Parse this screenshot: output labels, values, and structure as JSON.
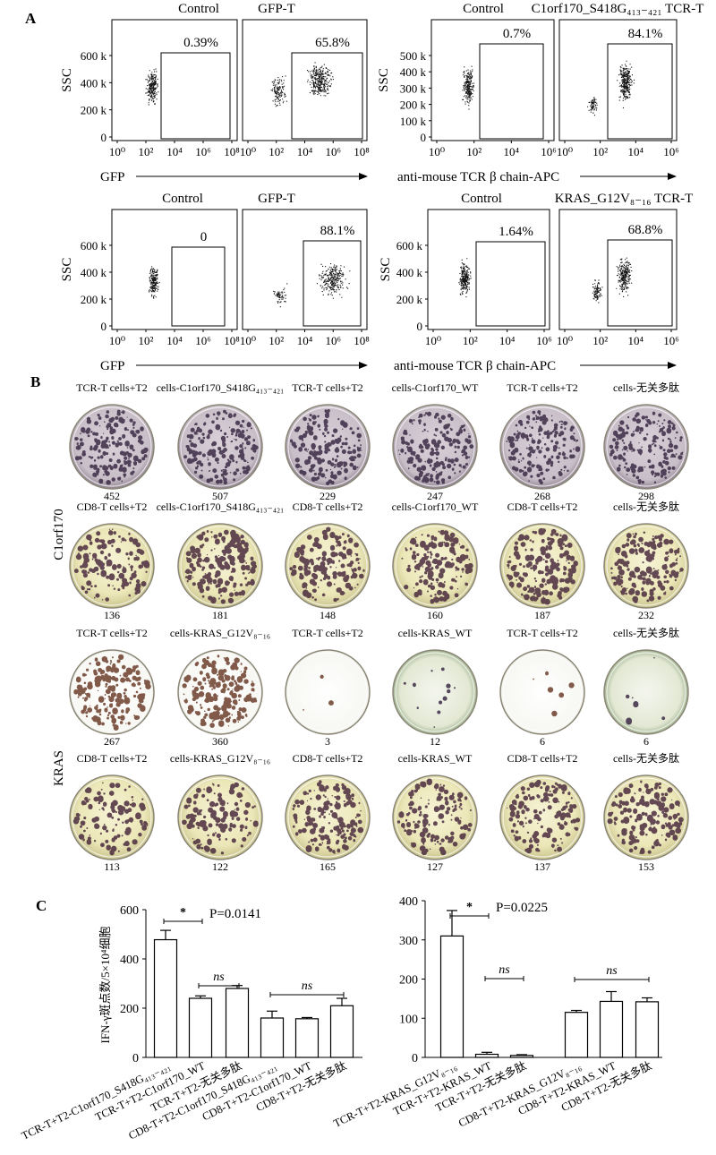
{
  "panel_labels": [
    "A",
    "B",
    "C"
  ],
  "panel_a": {
    "flow_plots": [
      {
        "title": "Control",
        "gate_percent": "0.39%",
        "y_ticks": [
          "600 k",
          "400 k",
          "200 k",
          "0"
        ],
        "x_ticks": [
          "10⁰",
          "10²",
          "10⁴",
          "10⁶",
          "10⁸"
        ],
        "y_label": "SSC",
        "x_label": "GFP"
      },
      {
        "title": "GFP-T",
        "gate_percent": "65.8%",
        "x_ticks": [
          "10⁰",
          "10²",
          "10⁴",
          "10⁶",
          "10⁸"
        ]
      },
      {
        "title": "Control",
        "gate_percent": "0.7%",
        "y_ticks": [
          "500 k",
          "400 k",
          "300 k",
          "200 k",
          "100 k",
          "0"
        ],
        "x_ticks": [
          "10⁰",
          "10²",
          "10⁴",
          "10⁶"
        ],
        "y_label": "SSC",
        "x_label": "anti-mouse TCR β chain-APC"
      },
      {
        "title": "C1orf170_S418G₄₁₃₋₄₂₁ TCR-T",
        "gate_percent": "84.1%",
        "x_ticks": [
          "10⁰",
          "10²",
          "10⁴",
          "10⁶"
        ]
      },
      {
        "title": "Control",
        "gate_percent": "0",
        "y_ticks": [
          "600 k",
          "400 k",
          "200 k",
          "0"
        ],
        "x_ticks": [
          "10⁰",
          "10²",
          "10⁴",
          "10⁶",
          "10⁸"
        ],
        "y_label": "SSC",
        "x_label": "GFP"
      },
      {
        "title": "GFP-T",
        "gate_percent": "88.1%",
        "x_ticks": [
          "10⁰",
          "10²",
          "10⁴",
          "10⁶",
          "10⁸"
        ]
      },
      {
        "title": "Control",
        "gate_percent": "1.64%",
        "y_ticks": [
          "600 k",
          "400 k",
          "200 k",
          "0"
        ],
        "x_ticks": [
          "10⁰",
          "10²",
          "10⁴",
          "10⁶"
        ],
        "y_label": "SSC",
        "x_label": "anti-mouse TCR β chain-APC"
      },
      {
        "title": "KRAS_G12V₈₋₁₆ TCR-T",
        "gate_percent": "68.8%",
        "x_ticks": [
          "10⁰",
          "10²",
          "10⁴",
          "10⁶"
        ]
      }
    ]
  },
  "panel_b": {
    "row_groups": [
      "C1orf170",
      "KRAS"
    ],
    "rows": [
      {
        "labels": [
          "TCR-T cells+T2",
          "cells-C1orf170_S418G₄₁₃₋₄₂₁",
          "TCR-T cells+T2",
          "cells-C1orf170_WT",
          "TCR-T cells+T2",
          "cells-无关多肽"
        ],
        "counts": [
          "452",
          "507",
          "229",
          "247",
          "268",
          "298"
        ],
        "well_style": "purple"
      },
      {
        "labels": [
          "CD8-T cells+T2",
          "cells-C1orf170_S418G₄₁₃₋₄₂₁",
          "CD8-T cells+T2",
          "cells-C1orf170_WT",
          "CD8-T cells+T2",
          "cells-无关多肽"
        ],
        "counts": [
          "136",
          "181",
          "148",
          "160",
          "187",
          "232"
        ],
        "well_style": "yellow"
      },
      {
        "labels": [
          "TCR-T cells+T2",
          "cells-KRAS_G12V₈₋₁₆",
          "TCR-T cells+T2",
          "cells-KRAS_WT",
          "TCR-T cells+T2",
          "cells-无关多肽"
        ],
        "counts": [
          "267",
          "360",
          "3",
          "12",
          "6",
          "6"
        ],
        "well_style": "white"
      },
      {
        "labels": [
          "CD8-T cells+T2",
          "cells-KRAS_G12V₈₋₁₆",
          "CD8-T cells+T2",
          "cells-KRAS_WT",
          "CD8-T cells+T2",
          "cells-无关多肽"
        ],
        "counts": [
          "113",
          "122",
          "165",
          "127",
          "137",
          "153"
        ],
        "well_style": "yellow"
      }
    ]
  },
  "chart_data": [
    {
      "type": "bar",
      "ylabel": "IFN-γ斑点数/5×10⁴细胞",
      "ylim": [
        0,
        600
      ],
      "y_ticks": [
        0,
        200,
        400,
        600
      ],
      "categories": [
        "TCR-T+T2-C1orf170_S418G₄₁₃₋₄₂₁",
        "TCR-T+T2-C1orf170_WT",
        "TCR-T+T2-无关多肽",
        "CD8-T+T2-C1orf170_S418G₄₁₃₋₄₂₁",
        "CD8-T+T2-C1orf170_WT",
        "CD8-T+T2-无关多肽"
      ],
      "values": [
        478,
        240,
        280,
        160,
        157,
        210
      ],
      "errors": [
        38,
        10,
        12,
        28,
        5,
        30
      ],
      "significance": [
        {
          "from": 0,
          "to": 1,
          "label": "*"
        },
        {
          "from": 1,
          "to": 2,
          "label": "ns"
        },
        {
          "from": 3,
          "to": 5,
          "label": "ns"
        }
      ],
      "p_value": "P=0.0141"
    },
    {
      "type": "bar",
      "ylim": [
        0,
        400
      ],
      "y_ticks": [
        0,
        100,
        200,
        300,
        400
      ],
      "categories": [
        "TCR-T+T2-KRAS_G12V₈₋₁₆",
        "TCR-T+T2-KRAS_WT",
        "TCR-T+T2-无关多肽",
        "CD8-T+T2-KRAS_G12V₈₋₁₆",
        "CD8-T+T2-KRAS_WT",
        "CD8-T+T2-无关多肽"
      ],
      "values": [
        310,
        8,
        5,
        115,
        143,
        142
      ],
      "errors": [
        65,
        5,
        2,
        5,
        25,
        10
      ],
      "significance": [
        {
          "from": 0,
          "to": 1,
          "label": "*"
        },
        {
          "from": 1,
          "to": 2,
          "label": "ns"
        },
        {
          "from": 3,
          "to": 5,
          "label": "ns"
        }
      ],
      "p_value": "P=0.0225"
    }
  ]
}
